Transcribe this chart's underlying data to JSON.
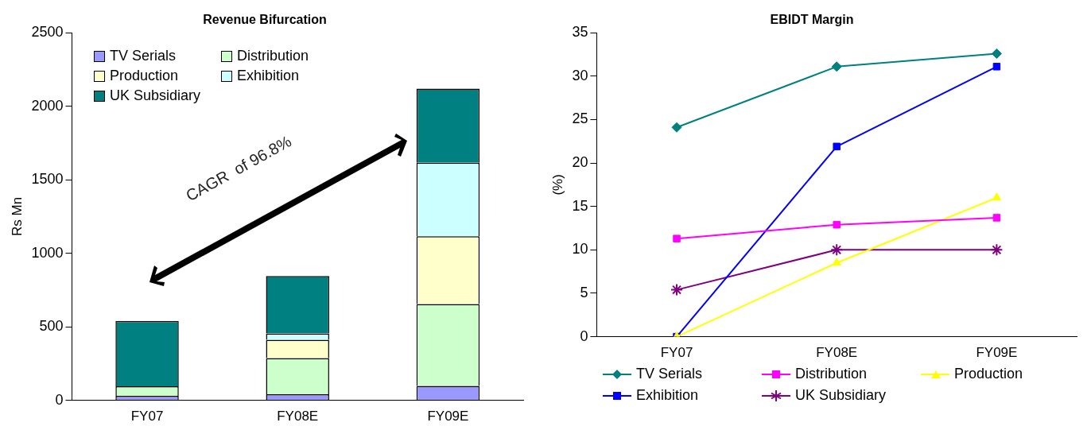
{
  "chart_data": [
    {
      "type": "bar",
      "title": "Revenue Bifurcation",
      "ylabel": "Rs Mn",
      "categories": [
        "FY07",
        "FY08E",
        "FY09E"
      ],
      "stacked": true,
      "ylim": [
        0,
        2500
      ],
      "yticks": [
        0,
        500,
        1000,
        1500,
        2000,
        2500
      ],
      "grid": false,
      "legend": "top left",
      "annotations": [
        "CAGR  of 96.8%"
      ],
      "series": [
        {
          "name": "TV Serials",
          "color": "#9999ff",
          "values": [
            30,
            41,
            98
          ]
        },
        {
          "name": "Distribution",
          "color": "#ccffcc",
          "values": [
            65,
            246,
            557
          ]
        },
        {
          "name": "Production",
          "color": "#ffffcc",
          "values": [
            0,
            124,
            460
          ]
        },
        {
          "name": "Exhibition",
          "color": "#ccffff",
          "values": [
            0,
            44,
            501
          ]
        },
        {
          "name": "UK Subsidiary",
          "color": "#008080",
          "values": [
            445,
            390,
            504
          ]
        }
      ]
    },
    {
      "type": "line",
      "title": "EBIDT Margin",
      "ylabel": "(%)",
      "categories": [
        "FY07",
        "FY08E",
        "FY09E"
      ],
      "ylim": [
        0,
        35
      ],
      "yticks": [
        0,
        5,
        10,
        15,
        20,
        25,
        30,
        35
      ],
      "grid": false,
      "legend": "bottom",
      "series": [
        {
          "name": "TV Serials",
          "color": "#008080",
          "marker": "diamond",
          "values": [
            24.1,
            31.1,
            32.6
          ]
        },
        {
          "name": "Distribution",
          "color": "#ff00ff",
          "marker": "square",
          "values": [
            11.3,
            12.9,
            13.7
          ]
        },
        {
          "name": "Production",
          "color": "#ffff00",
          "marker": "triangle",
          "values": [
            0,
            8.5,
            16
          ]
        },
        {
          "name": "Exhibition",
          "color": "#0000ff",
          "marker": "square",
          "values": [
            0,
            21.9,
            31.1
          ]
        },
        {
          "name": "UK Subsidiary",
          "color": "#800080",
          "marker": "cross",
          "values": [
            5.4,
            10,
            10
          ]
        }
      ]
    }
  ]
}
